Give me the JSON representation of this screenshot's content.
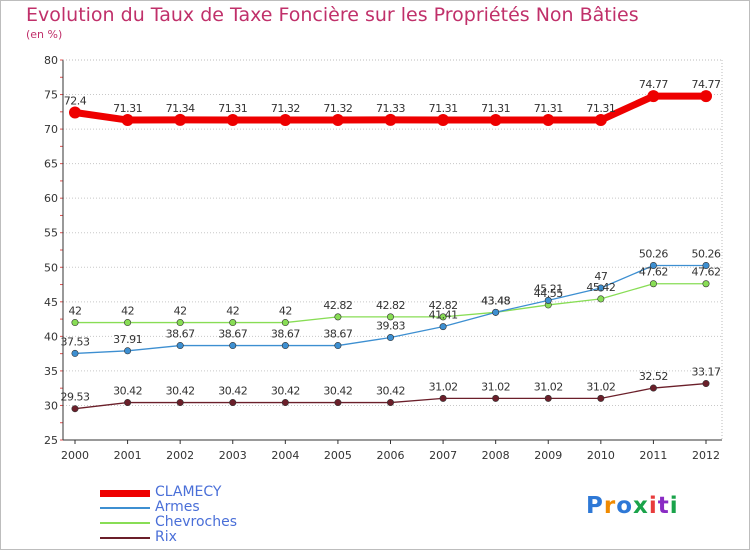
{
  "chart_data": {
    "type": "line",
    "title": "Evolution du Taux de Taxe Foncière sur les Propriétés Non Bâties",
    "subtitle": "(en %)",
    "x": [
      "2000",
      "2001",
      "2002",
      "2003",
      "2004",
      "2005",
      "2006",
      "2007",
      "2008",
      "2009",
      "2010",
      "2011",
      "2012"
    ],
    "ylim": [
      25,
      80
    ],
    "yticks": [
      "25",
      "30",
      "35",
      "40",
      "45",
      "50",
      "55",
      "60",
      "65",
      "70",
      "75",
      "80"
    ],
    "grid": "horizontal dotted",
    "legend_position": "bottom-left",
    "series": [
      {
        "name": "CLAMECY",
        "color": "#ee0000",
        "values": [
          72.4,
          71.31,
          71.34,
          71.31,
          71.32,
          71.32,
          71.33,
          71.31,
          71.31,
          71.31,
          71.31,
          74.77,
          74.77
        ],
        "labels": [
          "72.4",
          "71.31",
          "71.34",
          "71.31",
          "71.32",
          "71.32",
          "71.33",
          "71.31",
          "71.31",
          "71.31",
          "71.31",
          "74.77",
          "74.77"
        ]
      },
      {
        "name": "Armes",
        "color": "#3d8fd1",
        "values": [
          37.53,
          37.91,
          38.67,
          38.67,
          38.67,
          38.67,
          39.83,
          41.41,
          43.48,
          45.21,
          47,
          50.26,
          50.26
        ],
        "labels": [
          "37.53",
          "37.91",
          "38.67",
          "38.67",
          "38.67",
          "38.67",
          "39.83",
          "41.41",
          "43.48",
          "45.21",
          "47",
          "50.26",
          "50.26"
        ]
      },
      {
        "name": "Chevroches",
        "color": "#88dd55",
        "values": [
          42,
          42,
          42,
          42,
          42,
          42.82,
          42.82,
          42.82,
          43.48,
          44.55,
          45.42,
          47.62,
          47.62
        ],
        "labels": [
          "42",
          "42",
          "42",
          "42",
          "42",
          "42.82",
          "42.82",
          "42.82",
          "43.48",
          "44.55",
          "45.42",
          "47.62",
          "47.62"
        ]
      },
      {
        "name": "Rix",
        "color": "#6b1f2a",
        "values": [
          29.53,
          30.42,
          30.42,
          30.42,
          30.42,
          30.42,
          30.42,
          31.02,
          31.02,
          31.02,
          31.02,
          32.52,
          33.17
        ],
        "labels": [
          "29.53",
          "30.42",
          "30.42",
          "30.42",
          "30.42",
          "30.42",
          "30.42",
          "31.02",
          "31.02",
          "31.02",
          "31.02",
          "32.52",
          "33.17"
        ]
      }
    ]
  },
  "logo": {
    "letters": [
      "P",
      "r",
      "o",
      "x",
      "i",
      "t",
      "i"
    ],
    "colors": [
      "#2e78d6",
      "#f08a00",
      "#2e78d6",
      "#1aa34a",
      "#e83c3c",
      "#8a2bc4",
      "#1aa34a"
    ]
  }
}
